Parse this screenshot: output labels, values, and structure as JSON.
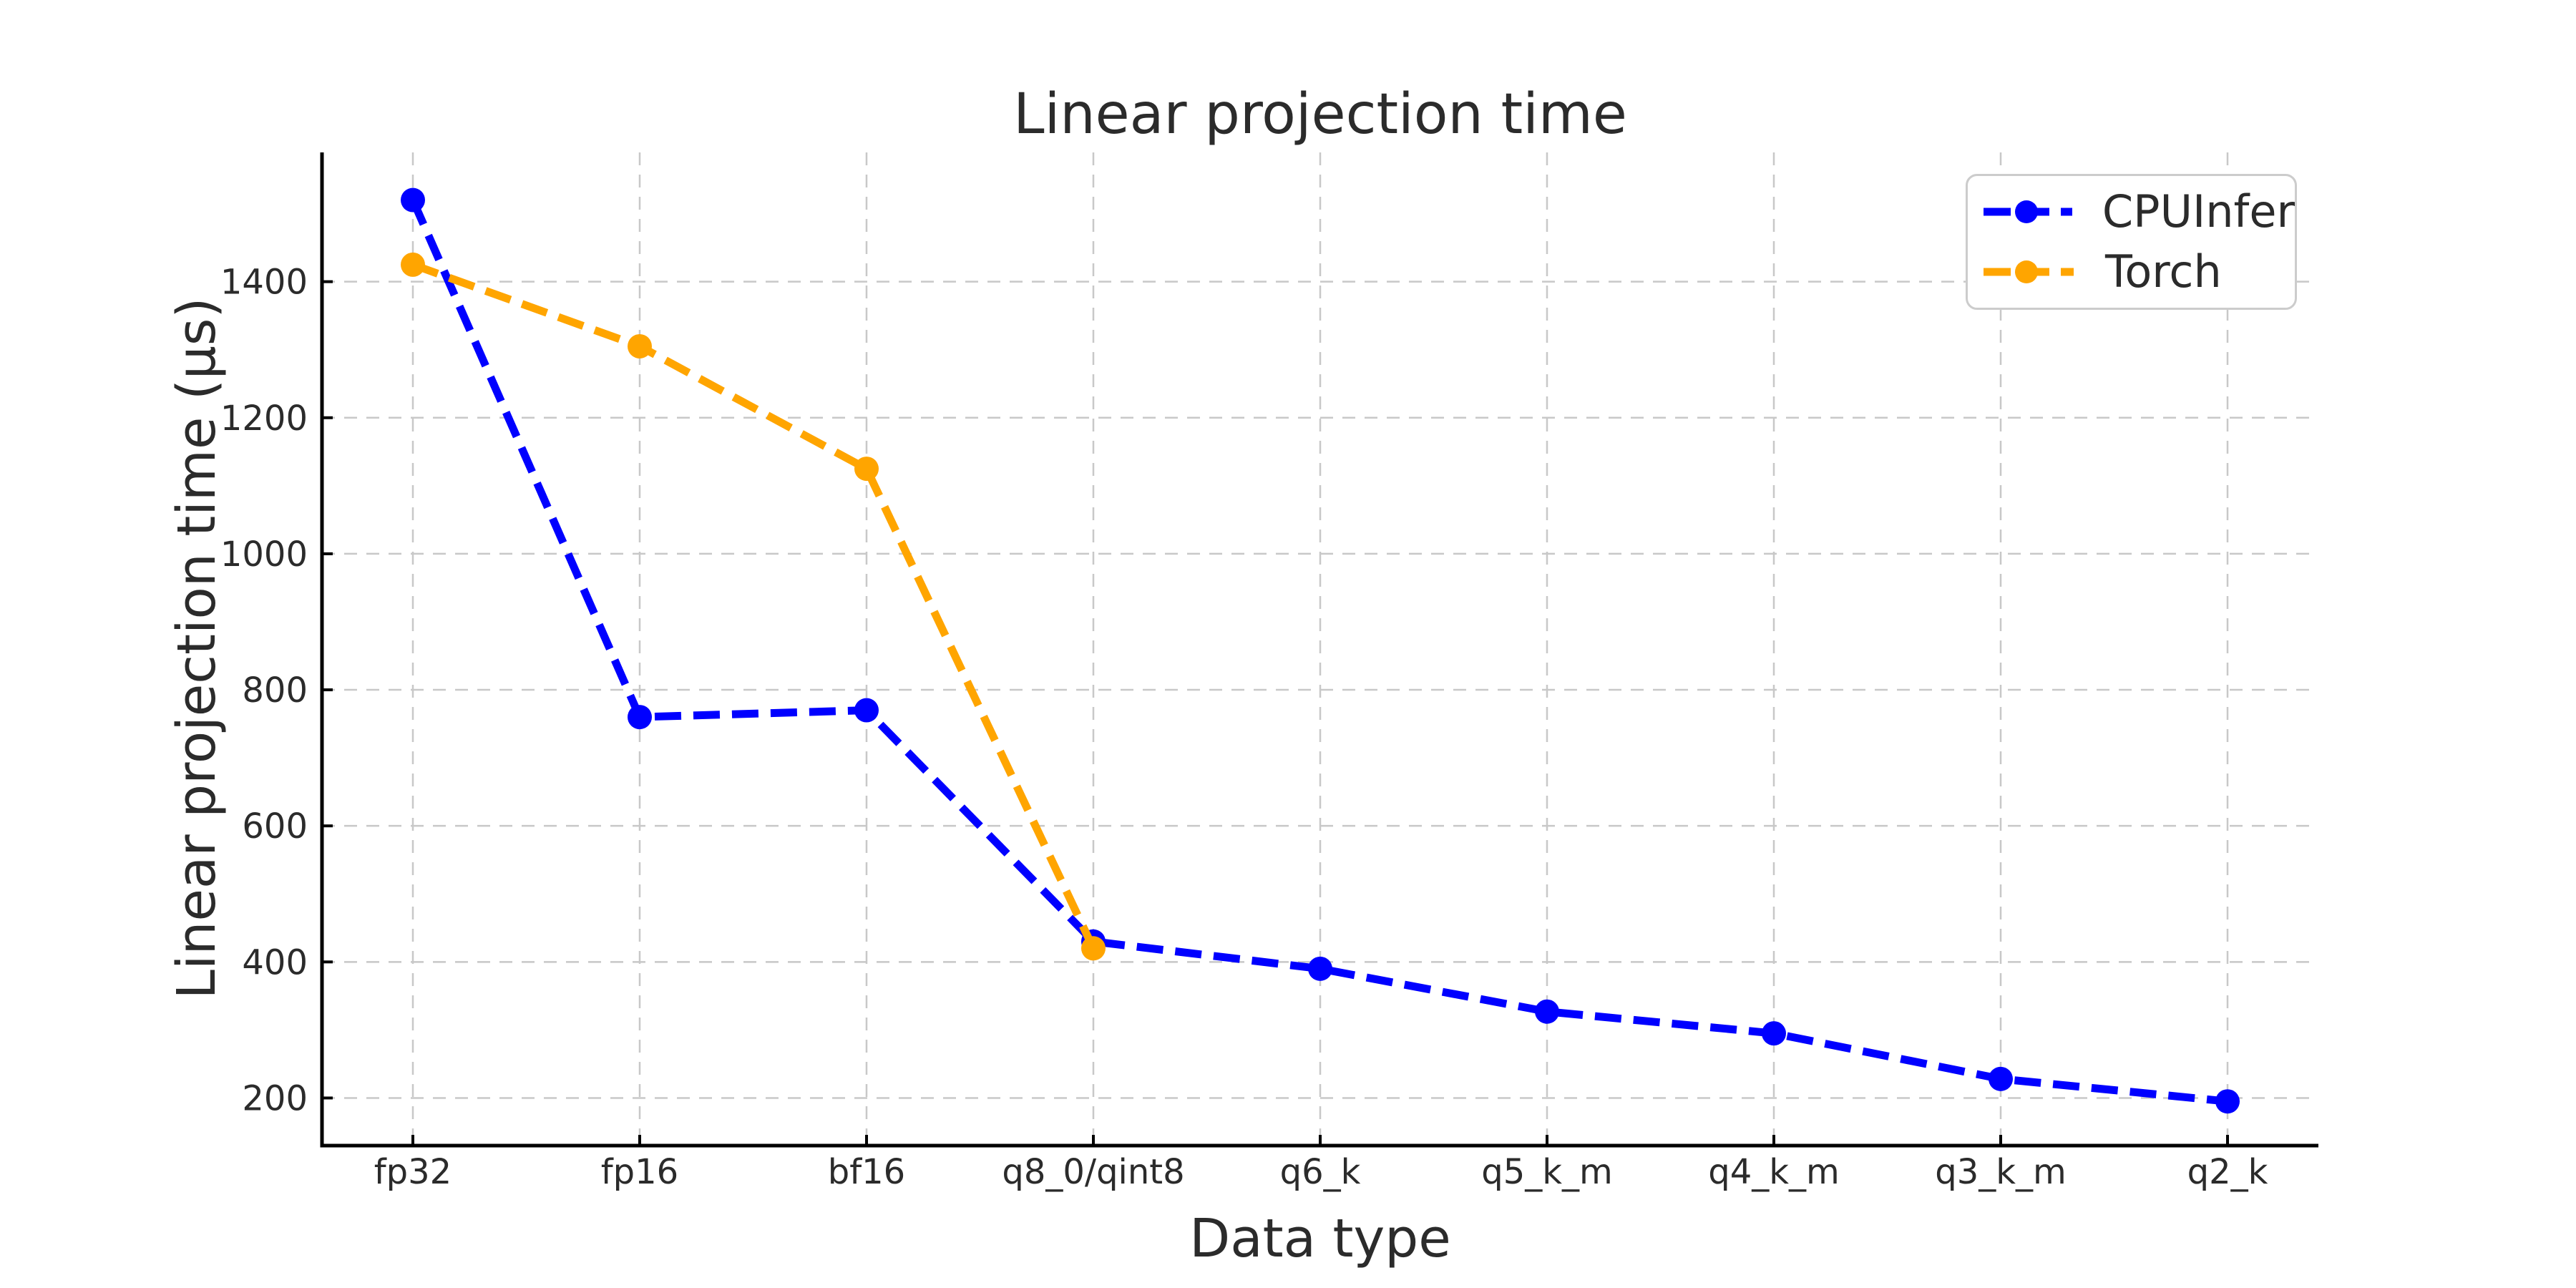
{
  "chart_data": {
    "type": "line",
    "title": "Linear projection time",
    "xlabel": "Data type",
    "ylabel": "Linear projection time (µs)",
    "categories": [
      "fp32",
      "fp16",
      "bf16",
      "q8_0/qint8",
      "q6_k",
      "q5_k_m",
      "q4_k_m",
      "q3_k_m",
      "q2_k"
    ],
    "series": [
      {
        "name": "CPUInfer",
        "color": "#0000ff",
        "marker": "circle",
        "linestyle": "dashed",
        "values": [
          1520,
          760,
          770,
          430,
          390,
          327,
          295,
          228,
          195
        ]
      },
      {
        "name": "Torch",
        "color": "#ffa500",
        "marker": "circle",
        "linestyle": "dashed",
        "values": [
          1425,
          1305,
          1125,
          420,
          null,
          null,
          null,
          null,
          null
        ]
      }
    ],
    "y_ticks": [
      200,
      400,
      600,
      800,
      1000,
      1200,
      1400
    ],
    "ylim": [
      130,
      1590
    ],
    "grid": true,
    "grid_style": "dashed",
    "grid_color": "#c8c8c8",
    "axis_color": "#000000",
    "text_color": "#2b2b2b",
    "background": "#ffffff",
    "legend_position": "upper right"
  }
}
